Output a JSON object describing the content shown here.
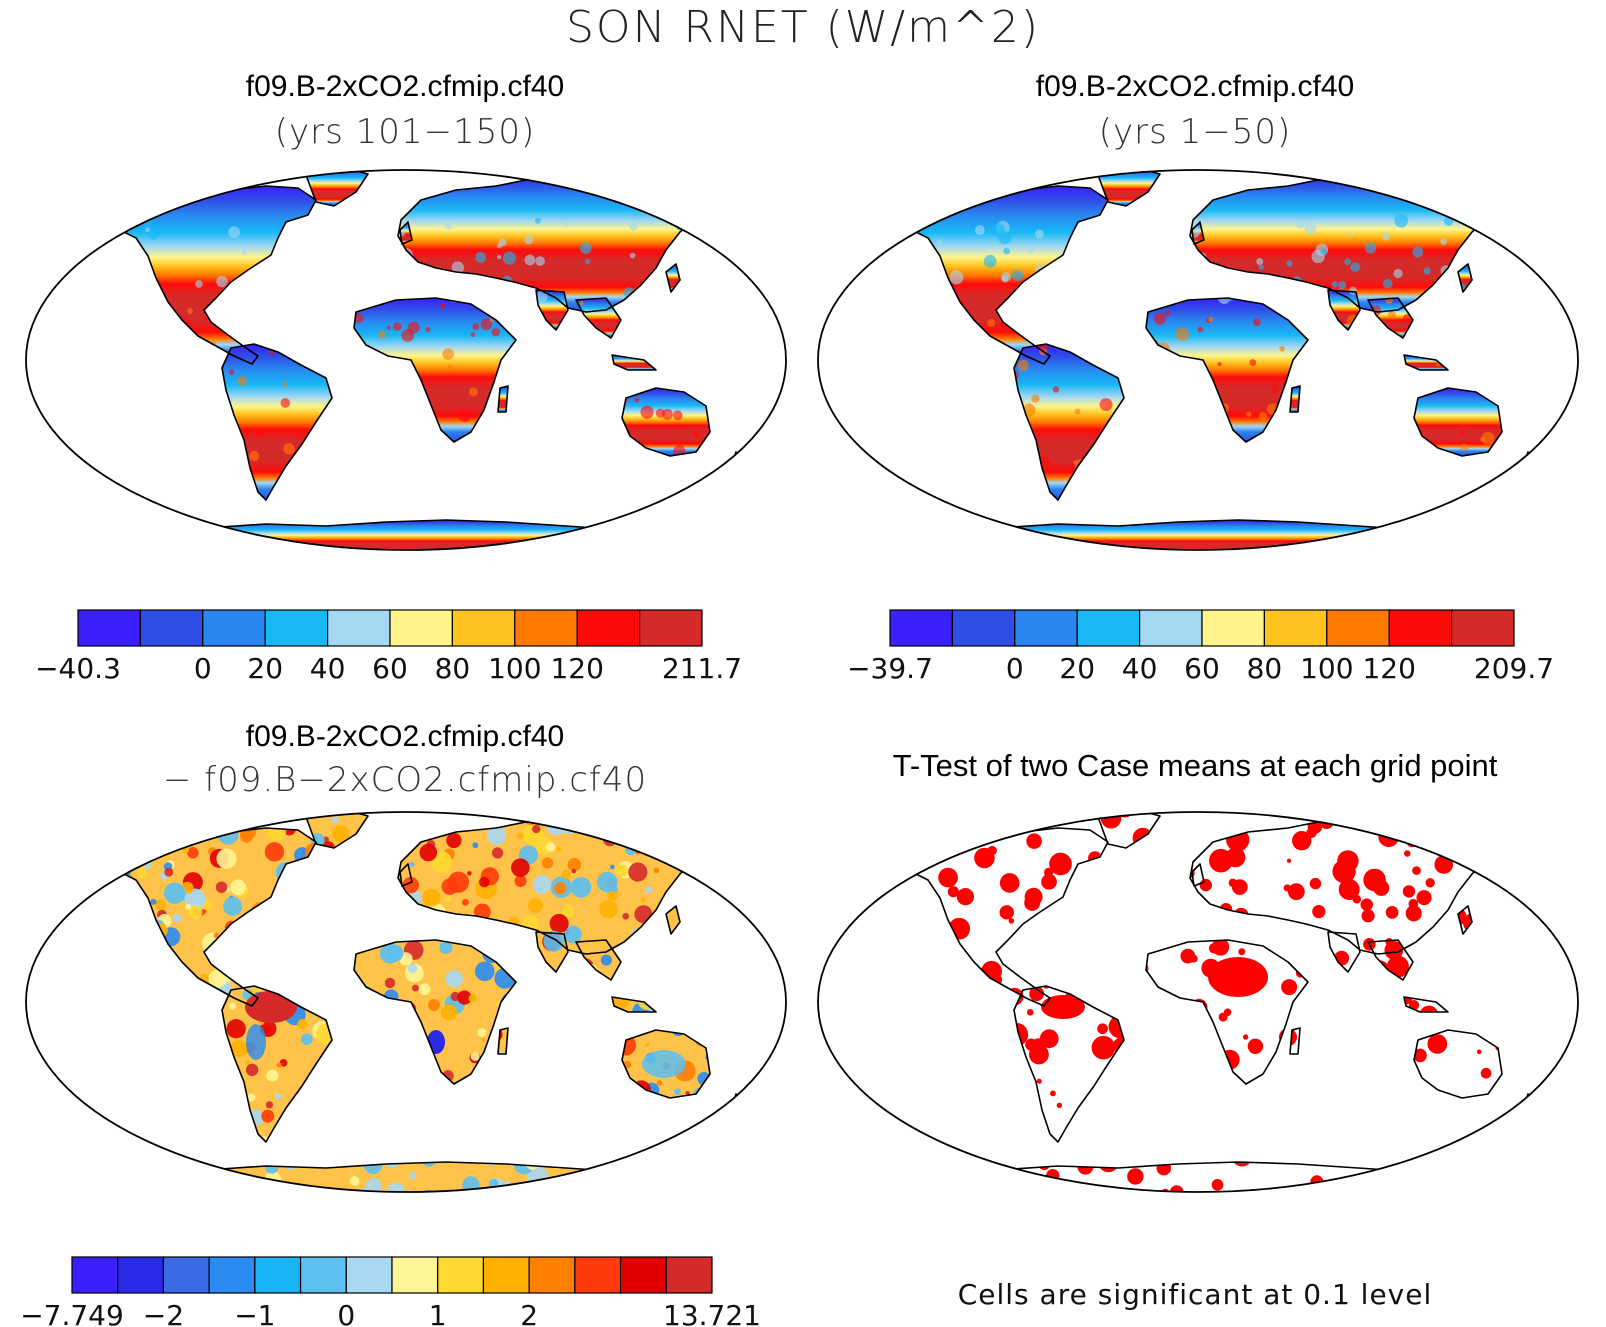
{
  "title": "SON RNET (W/m^2)",
  "colors": {
    "land_outline": "#000000",
    "significant": "#ff0000",
    "ocean": "#ffffff"
  },
  "panels": [
    {
      "id": "case1",
      "title": "f09.B-2xCO2.cfmip.cf40",
      "subtitle": "(yrs 101−150)",
      "colorbar": {
        "colors": [
          "#3a1fff",
          "#2f4ee6",
          "#2a86f0",
          "#18b8f5",
          "#a4d8f2",
          "#fff58a",
          "#ffc320",
          "#ff7a00",
          "#ff0a0a",
          "#d62a2a"
        ],
        "labels": [
          "−40.3",
          "",
          "0",
          "20",
          "40",
          "60",
          "80",
          "100",
          "120",
          "",
          "211.7"
        ]
      }
    },
    {
      "id": "case2",
      "title": "f09.B-2xCO2.cfmip.cf40",
      "subtitle": "(yrs 1−50)",
      "colorbar": {
        "colors": [
          "#3a1fff",
          "#2f4ee6",
          "#2a86f0",
          "#18b8f5",
          "#a4d8f2",
          "#fff58a",
          "#ffc320",
          "#ff7a00",
          "#ff0a0a",
          "#d62a2a"
        ],
        "labels": [
          "−39.7",
          "",
          "0",
          "20",
          "40",
          "60",
          "80",
          "100",
          "120",
          "",
          "209.7"
        ]
      }
    },
    {
      "id": "diff",
      "title": "f09.B-2xCO2.cfmip.cf40",
      "subtitle": "− f09.B−2xCO2.cfmip.cf40",
      "colorbar": {
        "colors": [
          "#3a1fff",
          "#2a2ae8",
          "#3a6ae6",
          "#2a8cf2",
          "#18b4f5",
          "#5cc0f0",
          "#a8d8f2",
          "#fff596",
          "#ffd830",
          "#ffb000",
          "#ff8000",
          "#ff3a0a",
          "#e00000",
          "#d62a2a"
        ],
        "labels": [
          "−7.749",
          "",
          "−2",
          "",
          "−1",
          "",
          "0",
          "",
          "1",
          "",
          "2",
          "",
          "",
          "",
          "13.721"
        ]
      }
    },
    {
      "id": "ttest",
      "title": "T-Test of two Case means at each grid point",
      "note": "Cells are significant at 0.1 level"
    }
  ]
}
